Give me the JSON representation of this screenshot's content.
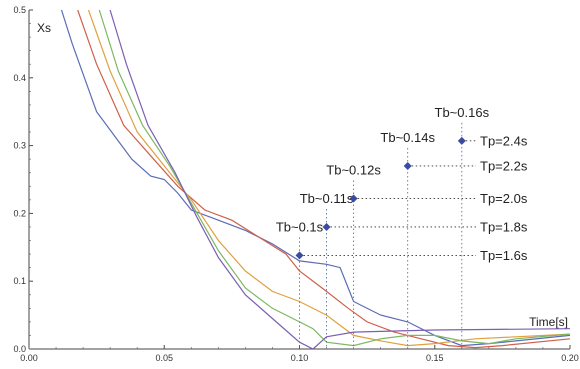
{
  "chart_data": {
    "type": "line",
    "title": "",
    "xlabel": "Time[s]",
    "ylabel": "Xs",
    "xlim": [
      0.0,
      0.2
    ],
    "ylim": [
      0.0,
      0.5
    ],
    "x_ticks": [
      "0.00",
      "0.05",
      "0.10",
      "0.15",
      "0.20"
    ],
    "y_ticks": [
      "0.0",
      "0.1",
      "0.2",
      "0.3",
      "0.4",
      "0.5"
    ],
    "grid": false,
    "series": [
      {
        "color": "#5b6cb6",
        "points": [
          [
            0.012,
            0.5
          ],
          [
            0.016,
            0.45
          ],
          [
            0.025,
            0.35
          ],
          [
            0.038,
            0.28
          ],
          [
            0.045,
            0.255
          ],
          [
            0.05,
            0.25
          ],
          [
            0.055,
            0.23
          ],
          [
            0.06,
            0.205
          ],
          [
            0.07,
            0.19
          ],
          [
            0.08,
            0.175
          ],
          [
            0.09,
            0.155
          ],
          [
            0.1,
            0.13
          ],
          [
            0.11,
            0.125
          ],
          [
            0.115,
            0.12
          ],
          [
            0.12,
            0.07
          ],
          [
            0.13,
            0.05
          ],
          [
            0.14,
            0.04
          ],
          [
            0.15,
            0.02
          ],
          [
            0.16,
            0.005
          ],
          [
            0.17,
            0.008
          ],
          [
            0.18,
            0.012
          ],
          [
            0.2,
            0.02
          ]
        ]
      },
      {
        "color": "#d05f4a",
        "points": [
          [
            0.018,
            0.5
          ],
          [
            0.025,
            0.42
          ],
          [
            0.035,
            0.33
          ],
          [
            0.045,
            0.285
          ],
          [
            0.055,
            0.24
          ],
          [
            0.065,
            0.205
          ],
          [
            0.075,
            0.19
          ],
          [
            0.085,
            0.165
          ],
          [
            0.095,
            0.14
          ],
          [
            0.1,
            0.115
          ],
          [
            0.11,
            0.085
          ],
          [
            0.118,
            0.06
          ],
          [
            0.125,
            0.04
          ],
          [
            0.135,
            0.025
          ],
          [
            0.145,
            0.015
          ],
          [
            0.155,
            0.005
          ],
          [
            0.165,
            0.002
          ],
          [
            0.175,
            0.005
          ],
          [
            0.2,
            0.015
          ]
        ]
      },
      {
        "color": "#e0a040",
        "points": [
          [
            0.022,
            0.5
          ],
          [
            0.03,
            0.41
          ],
          [
            0.04,
            0.32
          ],
          [
            0.05,
            0.27
          ],
          [
            0.06,
            0.22
          ],
          [
            0.07,
            0.16
          ],
          [
            0.08,
            0.115
          ],
          [
            0.09,
            0.085
          ],
          [
            0.1,
            0.07
          ],
          [
            0.11,
            0.05
          ],
          [
            0.12,
            0.02
          ],
          [
            0.13,
            0.012
          ],
          [
            0.14,
            0.005
          ],
          [
            0.15,
            0.008
          ],
          [
            0.165,
            0.015
          ],
          [
            0.2,
            0.022
          ]
        ]
      },
      {
        "color": "#7cb862",
        "points": [
          [
            0.026,
            0.5
          ],
          [
            0.033,
            0.41
          ],
          [
            0.042,
            0.33
          ],
          [
            0.052,
            0.27
          ],
          [
            0.06,
            0.215
          ],
          [
            0.07,
            0.145
          ],
          [
            0.08,
            0.09
          ],
          [
            0.09,
            0.06
          ],
          [
            0.1,
            0.04
          ],
          [
            0.105,
            0.03
          ],
          [
            0.11,
            0.01
          ],
          [
            0.12,
            0.005
          ],
          [
            0.13,
            0.015
          ],
          [
            0.14,
            0.02
          ],
          [
            0.15,
            0.02
          ],
          [
            0.16,
            0.012
          ],
          [
            0.17,
            0.008
          ],
          [
            0.18,
            0.015
          ],
          [
            0.2,
            0.022
          ]
        ]
      },
      {
        "color": "#7b5fb3",
        "points": [
          [
            0.03,
            0.5
          ],
          [
            0.036,
            0.42
          ],
          [
            0.044,
            0.33
          ],
          [
            0.054,
            0.26
          ],
          [
            0.062,
            0.195
          ],
          [
            0.07,
            0.135
          ],
          [
            0.08,
            0.08
          ],
          [
            0.09,
            0.045
          ],
          [
            0.1,
            0.01
          ],
          [
            0.105,
            0.0
          ],
          [
            0.11,
            0.018
          ],
          [
            0.12,
            0.025
          ],
          [
            0.13,
            0.026
          ],
          [
            0.15,
            0.028
          ],
          [
            0.2,
            0.03
          ]
        ]
      }
    ],
    "points": [
      {
        "x": 0.1,
        "y": 0.138,
        "tb": "Tb~0.1s",
        "tp": "Tp=1.6s"
      },
      {
        "x": 0.11,
        "y": 0.18,
        "tb": "Tb~0.11s",
        "tp": "Tp=1.8s"
      },
      {
        "x": 0.12,
        "y": 0.222,
        "tb": "Tb~0.12s",
        "tp": "Tp=2.0s"
      },
      {
        "x": 0.14,
        "y": 0.27,
        "tb": "Tb~0.14s",
        "tp": "Tp=2.2s"
      },
      {
        "x": 0.16,
        "y": 0.307,
        "tb": "Tb~0.16s",
        "tp": "Tp=2.4s"
      }
    ],
    "marker_color": "#3a4ba0"
  }
}
